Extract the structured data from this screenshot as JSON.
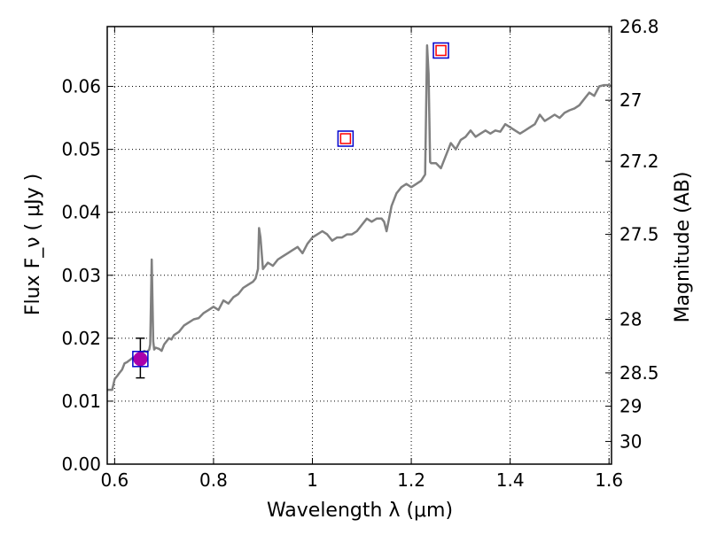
{
  "chart_data": {
    "type": "line",
    "xlabel": "Wavelength  λ (μm)",
    "ylabel": "Flux  F_ν  ( μJy )",
    "ylabel_right": "Magnitude (AB)",
    "xlim": [
      0.585,
      1.605
    ],
    "ylim": [
      0.0,
      0.0695
    ],
    "x_ticks": [
      0.6,
      0.8,
      1.0,
      1.2,
      1.4,
      1.6
    ],
    "x_tick_labels": [
      "0.6",
      "0.8",
      "1",
      "1.2",
      "1.4",
      "1.6"
    ],
    "y_ticks": [
      0.0,
      0.01,
      0.02,
      0.03,
      0.04,
      0.05,
      0.06
    ],
    "y_tick_labels": [
      "0.00",
      "0.01",
      "0.02",
      "0.03",
      "0.04",
      "0.05",
      "0.06"
    ],
    "right_axis_ticks": [
      {
        "label": "26.8",
        "flux": 0.0695
      },
      {
        "label": "27",
        "flux": 0.0578
      },
      {
        "label": "27.2",
        "flux": 0.0481
      },
      {
        "label": "27.5",
        "flux": 0.0365
      },
      {
        "label": "28",
        "flux": 0.023
      },
      {
        "label": "28.5",
        "flux": 0.0145
      },
      {
        "label": "29",
        "flux": 0.0092
      },
      {
        "label": "30",
        "flux": 0.0036
      }
    ],
    "grid": true,
    "series": [
      {
        "type": "line",
        "color": "#808080",
        "x": [
          0.585,
          0.595,
          0.6,
          0.605,
          0.61,
          0.615,
          0.62,
          0.625,
          0.63,
          0.635,
          0.64,
          0.645,
          0.65,
          0.655,
          0.66,
          0.665,
          0.67,
          0.672,
          0.675,
          0.678,
          0.68,
          0.683,
          0.69,
          0.695,
          0.7,
          0.705,
          0.71,
          0.715,
          0.72,
          0.73,
          0.74,
          0.75,
          0.76,
          0.77,
          0.78,
          0.79,
          0.8,
          0.81,
          0.82,
          0.83,
          0.84,
          0.85,
          0.86,
          0.87,
          0.88,
          0.885,
          0.89,
          0.892,
          0.895,
          0.9,
          0.905,
          0.91,
          0.92,
          0.93,
          0.94,
          0.95,
          0.96,
          0.97,
          0.98,
          0.99,
          1.0,
          1.01,
          1.02,
          1.03,
          1.04,
          1.05,
          1.06,
          1.07,
          1.08,
          1.09,
          1.1,
          1.11,
          1.12,
          1.13,
          1.14,
          1.145,
          1.15,
          1.16,
          1.17,
          1.18,
          1.19,
          1.2,
          1.21,
          1.22,
          1.228,
          1.232,
          1.235,
          1.238,
          1.24,
          1.25,
          1.26,
          1.27,
          1.28,
          1.29,
          1.3,
          1.31,
          1.32,
          1.33,
          1.34,
          1.35,
          1.36,
          1.37,
          1.38,
          1.39,
          1.4,
          1.41,
          1.42,
          1.43,
          1.44,
          1.45,
          1.46,
          1.47,
          1.48,
          1.49,
          1.5,
          1.51,
          1.52,
          1.53,
          1.54,
          1.55,
          1.56,
          1.57,
          1.58,
          1.59,
          1.6,
          1.605
        ],
        "y": [
          0.0118,
          0.0118,
          0.0135,
          0.014,
          0.0145,
          0.015,
          0.016,
          0.0162,
          0.0165,
          0.0168,
          0.017,
          0.0172,
          0.0175,
          0.0177,
          0.018,
          0.0178,
          0.0182,
          0.019,
          0.0325,
          0.0195,
          0.0182,
          0.0185,
          0.0183,
          0.018,
          0.019,
          0.0195,
          0.02,
          0.0198,
          0.0205,
          0.021,
          0.022,
          0.0225,
          0.023,
          0.0232,
          0.024,
          0.0245,
          0.025,
          0.0245,
          0.026,
          0.0255,
          0.0265,
          0.027,
          0.028,
          0.0285,
          0.029,
          0.0295,
          0.031,
          0.0375,
          0.036,
          0.031,
          0.0315,
          0.032,
          0.0315,
          0.0325,
          0.033,
          0.0335,
          0.034,
          0.0345,
          0.0335,
          0.035,
          0.036,
          0.0365,
          0.037,
          0.0365,
          0.0355,
          0.036,
          0.036,
          0.0365,
          0.0365,
          0.037,
          0.038,
          0.039,
          0.0385,
          0.039,
          0.039,
          0.0385,
          0.037,
          0.041,
          0.043,
          0.044,
          0.0445,
          0.044,
          0.0445,
          0.045,
          0.046,
          0.0665,
          0.062,
          0.048,
          0.0478,
          0.0478,
          0.047,
          0.049,
          0.051,
          0.05,
          0.0515,
          0.052,
          0.053,
          0.052,
          0.0525,
          0.053,
          0.0525,
          0.053,
          0.0528,
          0.054,
          0.0535,
          0.053,
          0.0525,
          0.053,
          0.0535,
          0.054,
          0.0555,
          0.0545,
          0.055,
          0.0555,
          0.055,
          0.0558,
          0.0562,
          0.0565,
          0.057,
          0.058,
          0.059,
          0.0585,
          0.06,
          0.0602,
          0.0602,
          0.06
        ]
      },
      {
        "type": "marker",
        "shape": "square",
        "edge_color": "#0000cc",
        "points": [
          {
            "x": 0.652,
            "y": 0.0167
          },
          {
            "x": 1.067,
            "y": 0.0517
          },
          {
            "x": 1.26,
            "y": 0.0657
          }
        ]
      },
      {
        "type": "marker",
        "shape": "square",
        "edge_color": "#ff0000",
        "size": "small",
        "points": [
          {
            "x": 1.067,
            "y": 0.0517
          },
          {
            "x": 1.26,
            "y": 0.0657
          }
        ]
      },
      {
        "type": "marker",
        "shape": "circle",
        "fill_color": "#aa00aa",
        "points": [
          {
            "x": 0.652,
            "y": 0.0167,
            "yerr_low": 0.0137,
            "yerr_high": 0.02
          }
        ]
      }
    ]
  }
}
